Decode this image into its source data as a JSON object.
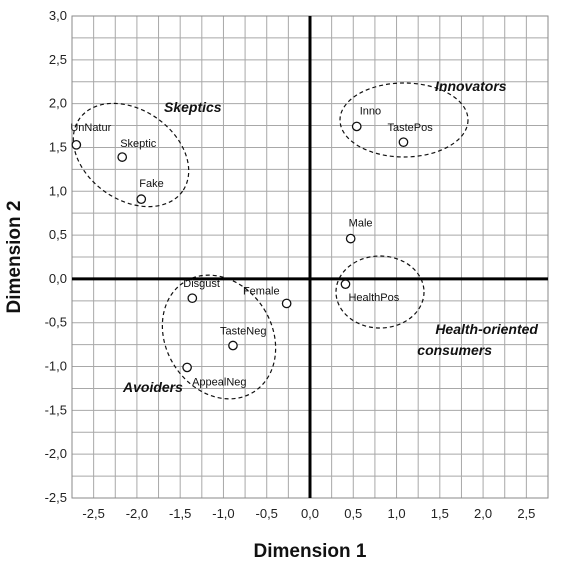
{
  "chart_data": {
    "type": "scatter",
    "xlabel": "Dimension 1",
    "ylabel": "Dimension 2",
    "xlim": [
      -2.75,
      2.75
    ],
    "ylim": [
      -2.5,
      3.0
    ],
    "x_ticks": [
      "-2,5",
      "-2,0",
      "-1,5",
      "-1,0",
      "-0,5",
      "0,0",
      "0,5",
      "1,0",
      "1,5",
      "2,0",
      "2,5"
    ],
    "y_ticks": [
      "3,0",
      "2,5",
      "2,0",
      "1,5",
      "1,0",
      "0,5",
      "0,0",
      "-0,5",
      "-1,0",
      "-1,5",
      "-2,0",
      "-2,5"
    ],
    "grid": true,
    "points": [
      {
        "label": "UnNatur",
        "x": -2.7,
        "y": 1.53
      },
      {
        "label": "Skeptic",
        "x": -2.17,
        "y": 1.39
      },
      {
        "label": "Fake",
        "x": -1.95,
        "y": 0.91
      },
      {
        "label": "Inno",
        "x": 0.54,
        "y": 1.74
      },
      {
        "label": "TastePos",
        "x": 1.08,
        "y": 1.56
      },
      {
        "label": "Male",
        "x": 0.47,
        "y": 0.46
      },
      {
        "label": "HealthPos",
        "x": 0.41,
        "y": -0.06
      },
      {
        "label": "Disgust",
        "x": -1.36,
        "y": -0.22
      },
      {
        "label": "Female",
        "x": -0.27,
        "y": -0.28
      },
      {
        "label": "TasteNeg",
        "x": -0.89,
        "y": -0.76
      },
      {
        "label": "AppealNeg",
        "x": -1.42,
        "y": -1.01
      }
    ],
    "groups": [
      {
        "label": "Skeptics",
        "members": [
          "UnNatur",
          "Skeptic",
          "Fake"
        ]
      },
      {
        "label": "Innovators",
        "members": [
          "Inno",
          "TastePos"
        ]
      },
      {
        "label": "Health-oriented consumers",
        "lines": [
          "Health-oriented",
          "consumers"
        ],
        "members": [
          "Male",
          "HealthPos"
        ]
      },
      {
        "label": "Avoiders",
        "members": [
          "Disgust",
          "Female",
          "TasteNeg",
          "AppealNeg"
        ]
      }
    ]
  }
}
